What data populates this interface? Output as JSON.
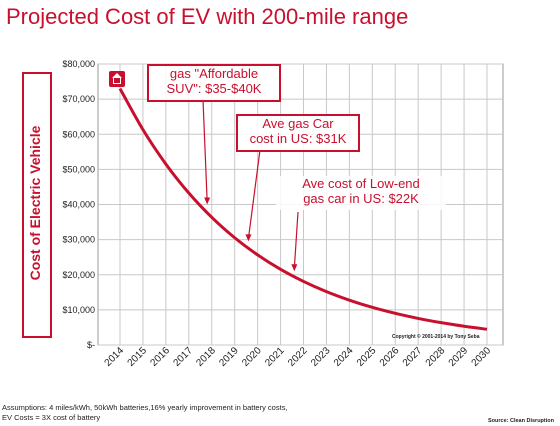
{
  "chart_data": {
    "type": "line",
    "title": "Projected Cost of EV with 200-mile range",
    "ylabel": "Cost of Electric Vehicle",
    "xlabel": "",
    "x": [
      2014,
      2015,
      2016,
      2017,
      2018,
      2019,
      2020,
      2021,
      2022,
      2023,
      2024,
      2025,
      2026,
      2027,
      2028,
      2029,
      2030
    ],
    "series": [
      {
        "values": [
          73000,
          61320,
          51510,
          43270,
          36350,
          30530,
          25650,
          21540,
          18100,
          15200,
          12770,
          10730,
          9010,
          7570,
          6360,
          5340,
          4480
        ]
      }
    ],
    "ylim": [
      0,
      80000
    ],
    "yticks": [
      0,
      10000,
      20000,
      30000,
      40000,
      50000,
      60000,
      70000,
      80000
    ],
    "ytick_labels": [
      "$-",
      "$10,000",
      "$20,000",
      "$30,000",
      "$40,000",
      "$50,000",
      "$60,000",
      "$70,000",
      "$80,000"
    ],
    "xtick_labels": [
      "2014",
      "2015",
      "2016",
      "2017",
      "2018",
      "2019",
      "2020",
      "2021",
      "2022",
      "2023",
      "2024",
      "2025",
      "2026",
      "2027",
      "2028",
      "2029",
      "2030"
    ],
    "grid": true,
    "line_color": "#c8102e",
    "annotations": [
      {
        "line1": "gas \"Affordable",
        "line2": "SUV\": $35-$40K",
        "x": 2017.8,
        "y": 40000
      },
      {
        "line1": "Ave gas Car",
        "line2": "cost in US: $31K",
        "x": 2019.6,
        "y": 29500
      },
      {
        "line1": "Ave cost of Low-end",
        "line2": "gas car in US: $22K",
        "x": 2021.6,
        "y": 21000
      }
    ]
  },
  "copyright": "Copyright © 2001-2014 by Tony Seba",
  "assumptions": {
    "line1": "Assumptions:  4 miles/kWh, 50kWh batteries,16% yearly improvement  in battery costs,",
    "line2": "EV Costs  = 3X cost of battery"
  },
  "source": "Source: Clean Disruption",
  "colors": {
    "accent": "#c8102e",
    "grid": "#c8c8c8"
  }
}
